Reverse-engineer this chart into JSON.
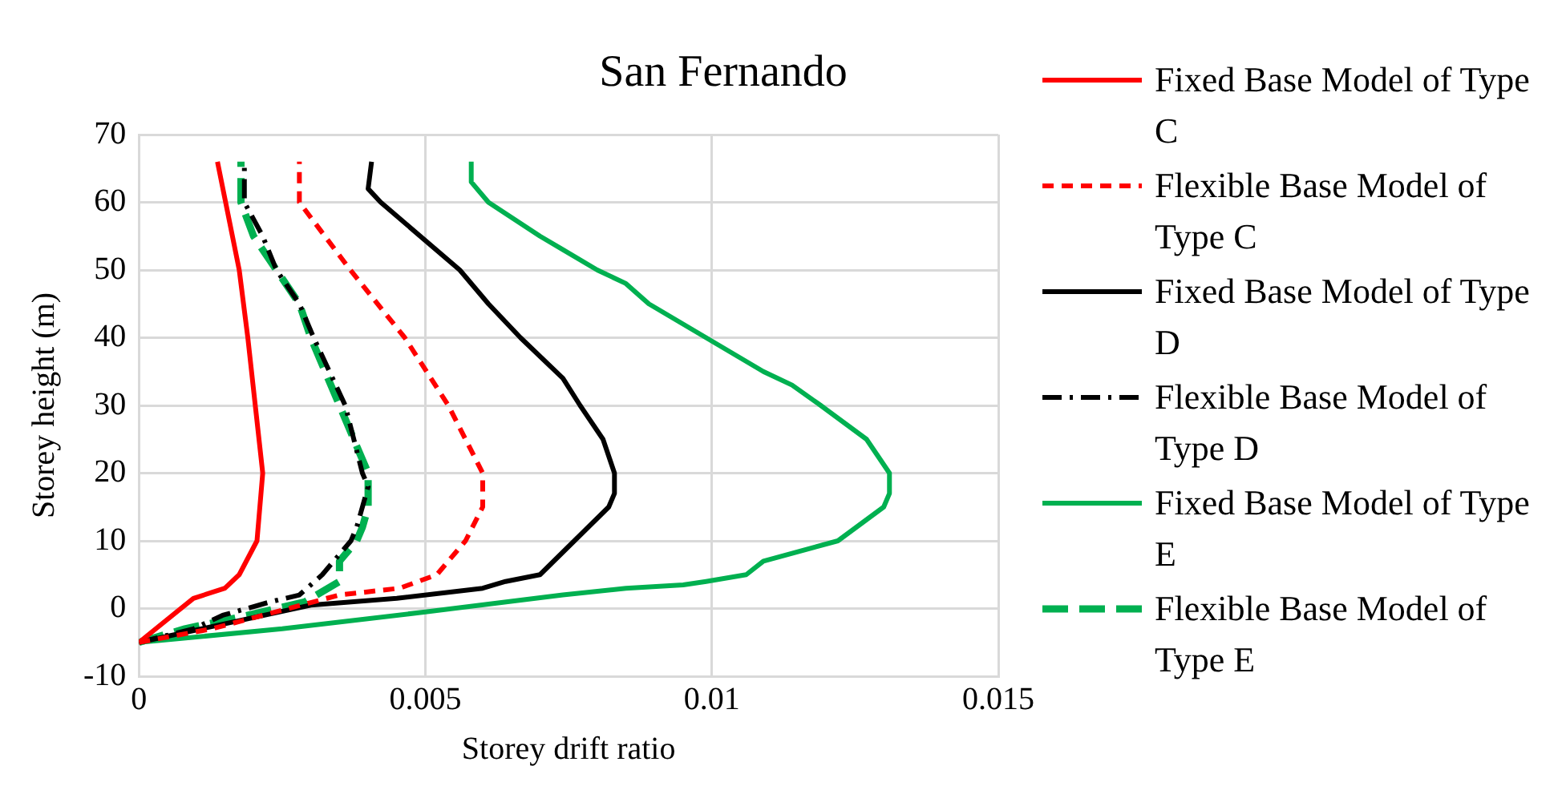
{
  "chart_data": {
    "type": "line",
    "title": "San Fernando",
    "xlabel": "Storey drift ratio",
    "ylabel": "Storey height (m)",
    "xlim": [
      0,
      0.015
    ],
    "xticks": [
      0,
      0.005,
      0.01,
      0.015
    ],
    "ylim": [
      -10,
      70
    ],
    "yticks": [
      -10,
      0,
      10,
      20,
      30,
      40,
      50,
      60,
      70
    ],
    "grid": true,
    "legend": "right",
    "marker": "none",
    "series": [
      {
        "name": "Fixed Base Model of Type C",
        "color": "#ff0000",
        "line_style": "solid",
        "x": [
          0,
          0.00095,
          0.0015,
          0.00175,
          0.00206,
          0.00216,
          0.0019,
          0.00175,
          0.00137
        ],
        "values": [
          -5,
          1.5,
          3,
          5,
          10,
          20,
          40,
          50,
          66
        ]
      },
      {
        "name": "Flexible Base Model of Type C",
        "color": "#ff0000",
        "line_style": "dashed",
        "x": [
          0,
          0.00127,
          0.0035,
          0.00455,
          0.0052,
          0.0057,
          0.006,
          0.006,
          0.0054,
          0.00464,
          0.00369,
          0.0028,
          0.0028
        ],
        "values": [
          -5,
          -3,
          2,
          3,
          5,
          10,
          15,
          20,
          30,
          40,
          50,
          60,
          66
        ]
      },
      {
        "name": "Fixed Base Model of Type D",
        "color": "#000000",
        "line_style": "solid",
        "x": [
          0,
          0.003,
          0.0045,
          0.006,
          0.0064,
          0.007,
          0.0076,
          0.0082,
          0.0083,
          0.0083,
          0.0081,
          0.0077,
          0.0074,
          0.00666,
          0.0061,
          0.0056,
          0.00422,
          0.004,
          0.00406
        ],
        "values": [
          -5,
          0.5,
          1.5,
          3,
          4,
          5,
          10,
          15,
          17,
          20,
          25,
          30,
          34,
          40,
          45,
          50,
          60,
          62,
          66
        ]
      },
      {
        "name": "Flexible Base Model of Type D",
        "color": "#000000",
        "line_style": "dashdot",
        "x": [
          0,
          0.00095,
          0.00146,
          0.0023,
          0.0028,
          0.0032,
          0.0037,
          0.0038,
          0.004,
          0.0039,
          0.0036,
          0.00305,
          0.0028,
          0.0024,
          0.00216,
          0.00184,
          0.00184
        ],
        "values": [
          -5,
          -3,
          -1,
          1,
          2,
          5,
          10,
          12,
          18,
          20,
          30,
          40,
          45,
          50,
          55,
          60,
          66
        ]
      },
      {
        "name": "Fixed Base Model of Type E",
        "color": "#00b050",
        "line_style": "solid",
        "x": [
          0,
          0.0025,
          0.005,
          0.0074,
          0.0085,
          0.0095,
          0.0099,
          0.0106,
          0.0109,
          0.0122,
          0.013,
          0.0131,
          0.0131,
          0.0127,
          0.0119,
          0.0114,
          0.0109,
          0.0099,
          0.0089,
          0.0085,
          0.008,
          0.0074,
          0.007,
          0.0061,
          0.0058,
          0.0058
        ],
        "values": [
          -5,
          -3,
          -0.5,
          2,
          3,
          3.5,
          4,
          5,
          7,
          10,
          15,
          17,
          20,
          25,
          30,
          33,
          35,
          40,
          45,
          48,
          50,
          53,
          55,
          60,
          63,
          66
        ]
      },
      {
        "name": "Flexible Base Model of Type E",
        "color": "#00b050",
        "line_style": "longdash",
        "x": [
          0,
          0.0008,
          0.0019,
          0.0029,
          0.0035,
          0.0035,
          0.0038,
          0.0039,
          0.004,
          0.004,
          0.0035,
          0.003,
          0.0028,
          0.0024,
          0.002,
          0.00178,
          0.00178
        ],
        "values": [
          -5,
          -3,
          -1,
          1,
          4,
          7,
          10,
          12,
          15,
          20,
          30,
          40,
          45,
          50,
          55,
          60,
          66
        ]
      }
    ]
  }
}
